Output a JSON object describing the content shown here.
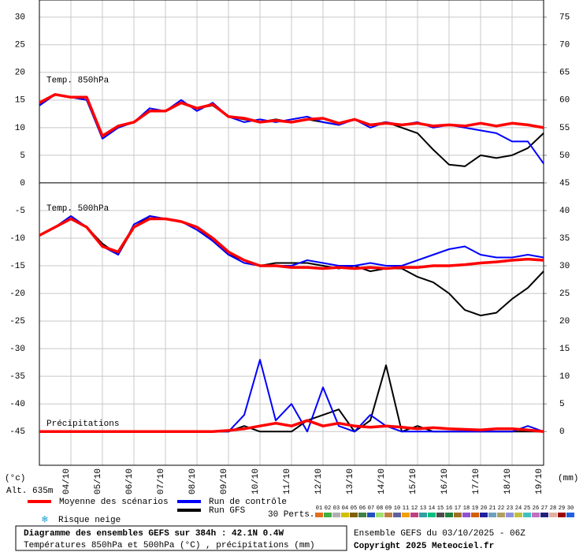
{
  "chart_data": {
    "type": "line",
    "x": [
      0,
      12,
      24,
      36,
      48,
      60,
      72,
      84,
      96,
      108,
      120,
      132,
      144,
      156,
      168,
      180,
      192,
      204,
      216,
      228,
      240,
      252,
      264,
      276,
      288,
      300,
      312,
      324,
      336,
      348,
      360,
      372,
      384
    ],
    "xlim": [
      0,
      384
    ],
    "xticks": [
      {
        "value": 24,
        "label": "04/10"
      },
      {
        "value": 48,
        "label": "05/10"
      },
      {
        "value": 72,
        "label": "06/10"
      },
      {
        "value": 96,
        "label": "07/10"
      },
      {
        "value": 120,
        "label": "08/10"
      },
      {
        "value": 144,
        "label": "09/10"
      },
      {
        "value": 168,
        "label": "10/10"
      },
      {
        "value": 192,
        "label": "11/10"
      },
      {
        "value": 216,
        "label": "12/10"
      },
      {
        "value": 240,
        "label": "13/10"
      },
      {
        "value": 264,
        "label": "14/10"
      },
      {
        "value": 288,
        "label": "15/10"
      },
      {
        "value": 312,
        "label": "16/10"
      },
      {
        "value": 336,
        "label": "17/10"
      },
      {
        "value": 360,
        "label": "18/10"
      },
      {
        "value": 384,
        "label": "19/10"
      }
    ],
    "ylim": [
      -51.1,
      33.1
    ],
    "yticks": [
      -45,
      -40,
      -35,
      -30,
      -25,
      -20,
      -15,
      -10,
      -5,
      0,
      5,
      10,
      15,
      20,
      25,
      30
    ],
    "y2lim": [
      -6.1,
      78.1
    ],
    "y2ticks": [
      0,
      5,
      10,
      15,
      20,
      25,
      30,
      35,
      40,
      45,
      50,
      55,
      60,
      65,
      70,
      75
    ],
    "y_unit": "(°c)",
    "y2_unit": "(mm)",
    "altitude": "Alt. 635m",
    "grid": true,
    "legend": [
      {
        "name": "Moyenne des scénarios",
        "color": "#ff0000"
      },
      {
        "name": "Run de contrôle",
        "color": "#0000ff"
      },
      {
        "name": "Run GFS",
        "color": "#000000"
      }
    ],
    "snow_label": "Risque neige",
    "perts_label": "30 Perts.",
    "perts": [
      {
        "name": "01",
        "color": "#e07020"
      },
      {
        "name": "02",
        "color": "#40b040"
      },
      {
        "name": "03",
        "color": "#b0b0b0"
      },
      {
        "name": "04",
        "color": "#d0c000"
      },
      {
        "name": "05",
        "color": "#806000"
      },
      {
        "name": "06",
        "color": "#408040"
      },
      {
        "name": "07",
        "color": "#2050c0"
      },
      {
        "name": "08",
        "color": "#a0e070"
      },
      {
        "name": "09",
        "color": "#c08040"
      },
      {
        "name": "10",
        "color": "#6060a0"
      },
      {
        "name": "11",
        "color": "#f0a000"
      },
      {
        "name": "12",
        "color": "#c04080"
      },
      {
        "name": "13",
        "color": "#30a0a0"
      },
      {
        "name": "14",
        "color": "#00c080"
      },
      {
        "name": "15",
        "color": "#4a4a4a"
      },
      {
        "name": "16",
        "color": "#208040"
      },
      {
        "name": "17",
        "color": "#a07020"
      },
      {
        "name": "18",
        "color": "#9050d0"
      },
      {
        "name": "19",
        "color": "#d06000"
      },
      {
        "name": "20",
        "color": "#2020a0"
      },
      {
        "name": "21",
        "color": "#70a0c0"
      },
      {
        "name": "22",
        "color": "#b0a060"
      },
      {
        "name": "23",
        "color": "#9090e0"
      },
      {
        "name": "24",
        "color": "#c0c040"
      },
      {
        "name": "25",
        "color": "#40c0c0"
      },
      {
        "name": "26",
        "color": "#c070c0"
      },
      {
        "name": "27",
        "color": "#202080"
      },
      {
        "name": "28",
        "color": "#e0b0a0"
      },
      {
        "name": "29",
        "color": "#a00000"
      },
      {
        "name": "30",
        "color": "#2060e0"
      }
    ],
    "panels": [
      {
        "label": "Temp. 850hPa",
        "series": [
          {
            "values": [
              14.5,
              16,
              15.5,
              15.5,
              8.5,
              10.3,
              11,
              13,
              13,
              14.5,
              13.5,
              14.2,
              12,
              11.7,
              11,
              11.3,
              11,
              11.5,
              11.7,
              10.8,
              11.5,
              10.5,
              10.8,
              10.5,
              10.8,
              10.3,
              10.5,
              10.3,
              10.8,
              10.3,
              10.8,
              10.5,
              10
            ]
          },
          {
            "values": [
              14,
              16,
              15.5,
              15,
              8,
              10,
              11,
              13.5,
              13,
              15,
              13,
              14.5,
              12,
              11,
              11.5,
              11,
              11.5,
              12,
              11,
              10.5,
              11.5,
              10,
              11,
              10.5,
              11,
              10,
              10.5,
              10,
              9.5,
              9,
              7.5,
              7.5,
              3.5
            ]
          },
          {
            "values": [
              14,
              16,
              15.5,
              15,
              8.5,
              10,
              11,
              13,
              13,
              14.5,
              13.5,
              14,
              12,
              11.5,
              11,
              11.5,
              11,
              11.5,
              11,
              10.5,
              11.5,
              10.5,
              11,
              10,
              9,
              6,
              3.3,
              3,
              5,
              4.5,
              5,
              6.3,
              9
            ]
          }
        ]
      },
      {
        "label": "Temp. 500hPa",
        "series": [
          {
            "values": [
              -9.5,
              -8,
              -6.5,
              -8,
              -11.5,
              -12.5,
              -8,
              -6.5,
              -6.5,
              -7,
              -8,
              -10,
              -12.5,
              -14,
              -15,
              -15,
              -15.3,
              -15.3,
              -15.5,
              -15.3,
              -15.5,
              -15.3,
              -15.5,
              -15.3,
              -15.3,
              -15,
              -15,
              -14.8,
              -14.5,
              -14.3,
              -14,
              -13.8,
              -14
            ]
          },
          {
            "values": [
              -9.5,
              -8,
              -6,
              -8,
              -11.5,
              -13,
              -7.5,
              -6,
              -6.5,
              -7,
              -8.5,
              -10.5,
              -13,
              -14.5,
              -15,
              -15,
              -15,
              -14,
              -14.5,
              -15,
              -15,
              -14.5,
              -15,
              -15,
              -14,
              -13,
              -12,
              -11.5,
              -13,
              -13.5,
              -13.5,
              -13,
              -13.5
            ]
          },
          {
            "values": [
              -9.5,
              -8,
              -6.5,
              -8,
              -11,
              -13,
              -8,
              -6,
              -6.5,
              -7,
              -8,
              -10.5,
              -13,
              -14,
              -15,
              -14.5,
              -14.5,
              -14.5,
              -15,
              -15.5,
              -15,
              -16,
              -15.5,
              -15.5,
              -17,
              -18,
              -20,
              -23,
              -24,
              -23.5,
              -21,
              -19,
              -16
            ]
          }
        ]
      },
      {
        "label": "Précipitations",
        "axis": "y2",
        "series": [
          {
            "values": [
              0,
              0,
              0,
              0,
              0,
              0,
              0,
              0,
              0,
              0,
              0,
              0,
              0.2,
              0.5,
              1,
              1.5,
              1,
              2,
              1,
              1.5,
              1,
              0.8,
              1,
              0.8,
              0.5,
              0.7,
              0.5,
              0.4,
              0.3,
              0.5,
              0.5,
              0.3,
              0
            ]
          },
          {
            "values": [
              0,
              0,
              0,
              0,
              0,
              0,
              0,
              0,
              0,
              0,
              0,
              0,
              0,
              3,
              13,
              2,
              5,
              0,
              8,
              1,
              0,
              3,
              1,
              0,
              0,
              0,
              0,
              0,
              0,
              0,
              0,
              1,
              0
            ]
          },
          {
            "values": [
              0,
              0,
              0,
              0,
              0,
              0,
              0,
              0,
              0,
              0,
              0,
              0,
              0,
              1,
              0,
              0,
              0,
              2,
              3,
              4,
              0,
              2,
              12,
              0,
              1,
              0,
              0,
              0,
              0,
              0,
              0,
              0,
              0
            ]
          }
        ]
      }
    ],
    "footer": {
      "title": "Diagramme des ensembles GEFS sur 384h : 42.1N 0.4W",
      "subtitle": "Températures 850hPa et 500hPa (°C) , précipitations (mm)",
      "run": "Ensemble GEFS du 03/10/2025 - 06Z",
      "copyright": "Copyright 2025 Meteociel.fr"
    }
  }
}
